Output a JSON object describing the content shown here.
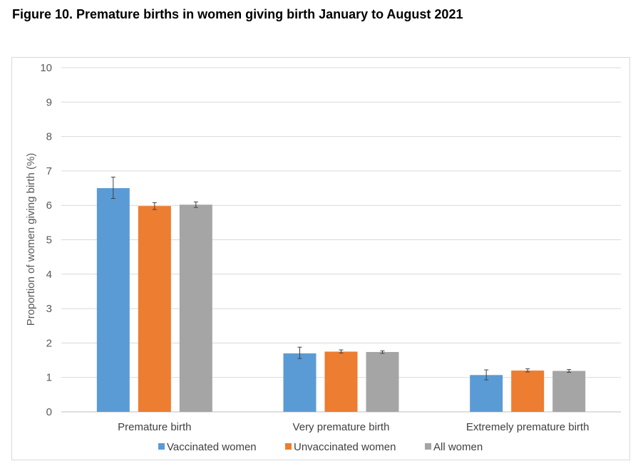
{
  "figure_title": "Figure 10. Premature births in women giving birth January to August 2021",
  "chart_data": {
    "type": "bar",
    "title": "",
    "xlabel": "",
    "ylabel": "Proportion of women giving birth (%)",
    "ylim": [
      0,
      10
    ],
    "yticks": [
      0,
      1,
      2,
      3,
      4,
      5,
      6,
      7,
      8,
      9,
      10
    ],
    "grid": true,
    "legend_position": "bottom",
    "categories": [
      "Premature birth",
      "Very premature birth",
      "Extremely premature birth"
    ],
    "series": [
      {
        "name": "Vaccinated women",
        "color": "#5b9bd5",
        "values": [
          6.5,
          1.7,
          1.07
        ],
        "err_low": [
          6.2,
          1.55,
          0.93
        ],
        "err_high": [
          6.82,
          1.88,
          1.22
        ]
      },
      {
        "name": "Unvaccinated women",
        "color": "#ed7d31",
        "values": [
          5.98,
          1.75,
          1.2
        ],
        "err_low": [
          5.88,
          1.71,
          1.16
        ],
        "err_high": [
          6.08,
          1.8,
          1.25
        ]
      },
      {
        "name": "All women",
        "color": "#a5a5a5",
        "values": [
          6.02,
          1.74,
          1.19
        ],
        "err_low": [
          5.94,
          1.7,
          1.15
        ],
        "err_high": [
          6.1,
          1.77,
          1.23
        ]
      }
    ]
  }
}
